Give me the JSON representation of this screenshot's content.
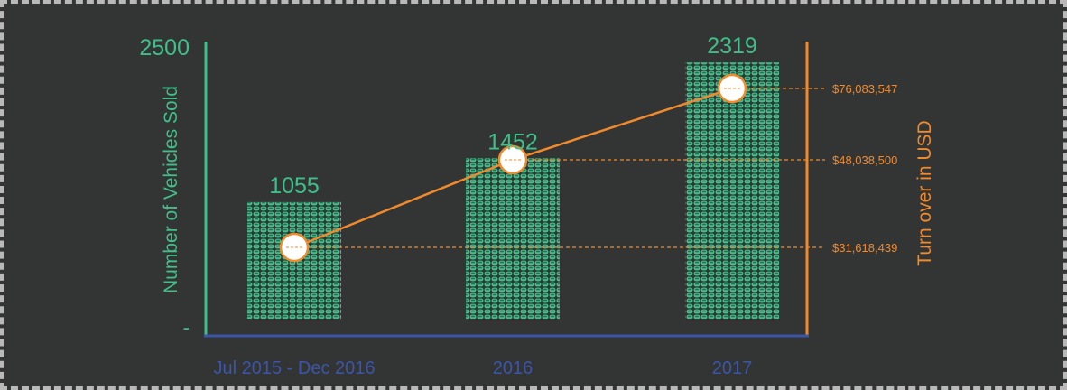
{
  "chart_data": {
    "type": "bar",
    "categories": [
      "Jul 2015 - Dec 2016",
      "2016",
      "2017"
    ],
    "values": [
      1055,
      1452,
      2319
    ],
    "value_labels": [
      "1055",
      "1452",
      "2319"
    ],
    "ylabel": "Number of Vehicles Sold",
    "ylim": [
      0,
      2500
    ],
    "y_tick_labels": [
      "2500",
      "-"
    ],
    "secondary": {
      "type": "line",
      "ylabel": "Turn over in USD",
      "values": [
        31618439,
        48038500,
        76083547
      ],
      "value_labels": [
        "$31,618,439",
        "$48,038,500",
        "$76,083,547"
      ]
    },
    "colors": {
      "bars": "#3fbf8a",
      "line": "#f08a2c",
      "x_axis": "#3b55a8",
      "background": "#333534"
    },
    "grid": false,
    "bar_style": "pictogram"
  }
}
